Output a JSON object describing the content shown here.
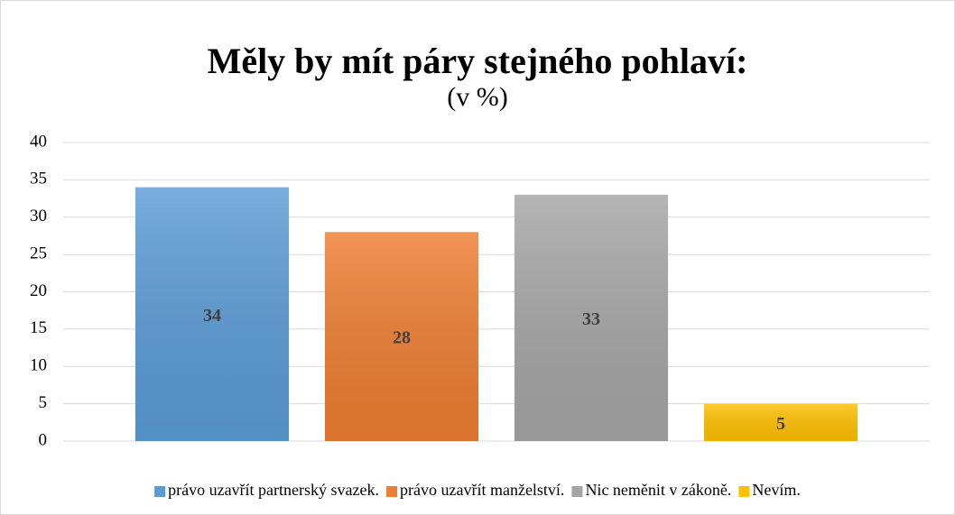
{
  "chart_data": {
    "type": "bar",
    "title": "Měly by mít páry stejného pohlaví:",
    "subtitle": "(v %)",
    "categories": [
      null
    ],
    "series": [
      {
        "name": "právo uzavřít partnerský svazek.",
        "color": "#5b9bd5",
        "values": [
          34
        ]
      },
      {
        "name": "právo uzavřít manželství.",
        "color": "#ed7d31",
        "values": [
          28
        ]
      },
      {
        "name": "Nic neměnit v zákoně.",
        "color": "#a5a5a5",
        "values": [
          33
        ]
      },
      {
        "name": "Nevím.",
        "color": "#ffc000",
        "values": [
          5
        ]
      }
    ],
    "ylim": [
      0,
      40
    ],
    "yticks": [
      0,
      5,
      10,
      15,
      20,
      25,
      30,
      35,
      40
    ],
    "grid": true,
    "legend": "bottom"
  }
}
